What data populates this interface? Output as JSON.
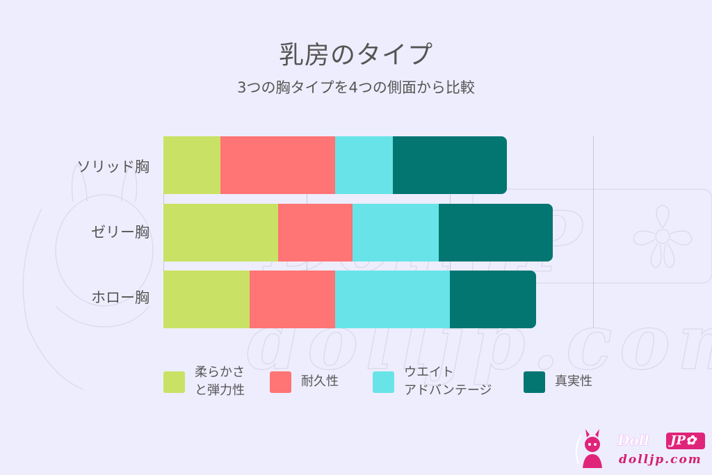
{
  "header": {
    "title": "乳房のタイプ",
    "subtitle": "3つの胸タイプを4つの側面から比較"
  },
  "legend": {
    "items": [
      {
        "label": "柔らかさ\nと弾力性",
        "color": "#c9e265"
      },
      {
        "label": "耐久性",
        "color": "#ff7474"
      },
      {
        "label": "ウエイト\nアドバンテージ",
        "color": "#68e4e8"
      },
      {
        "label": "真実性",
        "color": "#047672"
      }
    ]
  },
  "logo": {
    "brand": "Doll",
    "badge": "JP✿",
    "url": "dolljp.com"
  },
  "chart_data": {
    "type": "bar",
    "orientation": "horizontal",
    "stacked": true,
    "title": "乳房のタイプ",
    "subtitle": "3つの胸タイプを4つの側面から比較",
    "categories": [
      "ソリッド胸",
      "ゼリー胸",
      "ホロー胸"
    ],
    "series": [
      {
        "name": "柔らかさと弾力性",
        "color": "#c9e265",
        "values": [
          1,
          2,
          1.5
        ]
      },
      {
        "name": "耐久性",
        "color": "#ff7474",
        "values": [
          2,
          1.3,
          1.5
        ]
      },
      {
        "name": "ウエイトアドバンテージ",
        "color": "#68e4e8",
        "values": [
          1,
          1.5,
          2
        ]
      },
      {
        "name": "真実性",
        "color": "#047672",
        "values": [
          2,
          2,
          1.5
        ]
      }
    ],
    "xlabel": "",
    "ylabel": "",
    "xlim": [
      0,
      7.5
    ],
    "grid": true,
    "gridlines_x": [
      2.5,
      5,
      7.5
    ],
    "tick_labels_visible": false,
    "legend_position": "bottom"
  }
}
